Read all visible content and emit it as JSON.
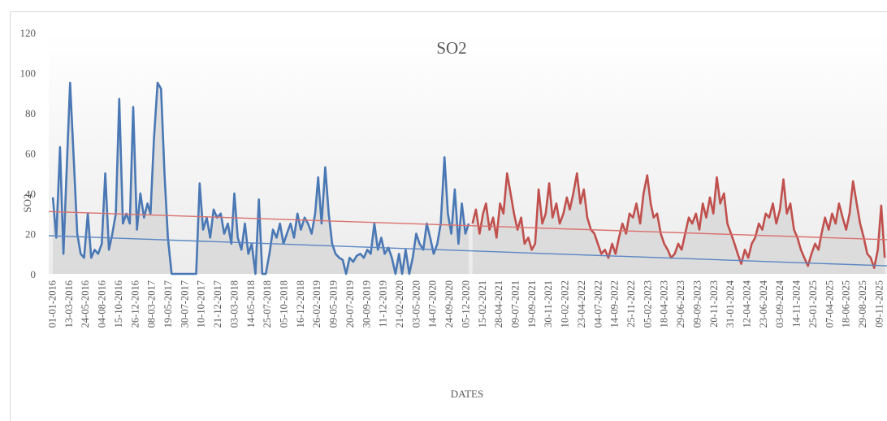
{
  "chart_data": {
    "type": "line",
    "title": "SO2",
    "y_label": "SO2",
    "x_label": "DATES",
    "ylim": [
      0,
      120
    ],
    "yticks": [
      0,
      20,
      40,
      60,
      80,
      100,
      120
    ],
    "xlim": [
      "14-12-2015",
      "11-12-2025"
    ],
    "xticks": [
      "01-01-2016",
      "13-03-2016",
      "24-05-2016",
      "04-08-2016",
      "15-10-2016",
      "26-12-2016",
      "08-03-2017",
      "19-05-2017",
      "30-07-2017",
      "10-10-2017",
      "21-12-2017",
      "03-03-2018",
      "14-05-2018",
      "25-07-2018",
      "05-10-2018",
      "16-12-2018",
      "26-02-2019",
      "09-05-2019",
      "20-07-2019",
      "30-09-2019",
      "11-12-2019",
      "21-02-2020",
      "03-05-2020",
      "14-07-2020",
      "24-09-2020",
      "05-12-2020",
      "15-02-2021",
      "28-04-2021",
      "09-07-2021",
      "19-09-2021",
      "30-11-2021",
      "10-02-2022",
      "23-04-2022",
      "04-07-2022",
      "14-09-2022",
      "25-11-2022",
      "05-02-2023",
      "18-04-2023",
      "29-06-2023",
      "09-09-2023",
      "20-11-2023",
      "31-01-2024",
      "12-04-2024",
      "23-06-2024",
      "03-09-2024",
      "14-11-2024",
      "25-01-2025",
      "07-04-2025",
      "18-06-2025",
      "29-08-2025",
      "09-11-2025"
    ],
    "area_fill": "#d6d6d6",
    "series": [
      {
        "color": "#4a78b5",
        "area": true,
        "x": [
          "01-01-2016",
          "16-01-2016",
          "01-02-2016",
          "16-02-2016",
          "01-03-2016",
          "16-03-2016",
          "01-04-2016",
          "16-04-2016",
          "01-05-2016",
          "16-05-2016",
          "01-06-2016",
          "16-06-2016",
          "01-07-2016",
          "16-07-2016",
          "01-08-2016",
          "16-08-2016",
          "01-09-2016",
          "16-09-2016",
          "01-10-2016",
          "16-10-2016",
          "01-11-2016",
          "16-11-2016",
          "01-12-2016",
          "16-12-2016",
          "01-01-2017",
          "16-01-2017",
          "01-02-2017",
          "16-02-2017",
          "01-03-2017",
          "16-03-2017",
          "01-04-2017",
          "16-04-2017",
          "01-05-2017",
          "16-05-2017",
          "01-06-2017",
          "16-06-2017",
          "01-07-2017",
          "16-07-2017",
          "01-08-2017",
          "16-08-2017",
          "01-09-2017",
          "16-09-2017",
          "01-10-2017",
          "16-10-2017",
          "01-11-2017",
          "16-11-2017",
          "01-12-2017",
          "16-12-2017",
          "01-01-2018",
          "16-01-2018",
          "01-02-2018",
          "16-02-2018",
          "01-03-2018",
          "16-03-2018",
          "01-04-2018",
          "16-04-2018",
          "01-05-2018",
          "16-05-2018",
          "01-06-2018",
          "16-06-2018",
          "01-07-2018",
          "16-07-2018",
          "01-08-2018",
          "16-08-2018",
          "01-09-2018",
          "16-09-2018",
          "01-10-2018",
          "16-10-2018",
          "01-11-2018",
          "16-11-2018",
          "01-12-2018",
          "16-12-2018",
          "01-01-2019",
          "16-01-2019",
          "01-02-2019",
          "16-02-2019",
          "01-03-2019",
          "16-03-2019",
          "01-04-2019",
          "16-04-2019",
          "01-05-2019",
          "16-05-2019",
          "01-06-2019",
          "16-06-2019",
          "01-07-2019",
          "16-07-2019",
          "01-08-2019",
          "16-08-2019",
          "01-09-2019",
          "16-09-2019",
          "01-10-2019",
          "16-10-2019",
          "01-11-2019",
          "16-11-2019",
          "01-12-2019",
          "16-12-2019",
          "01-01-2020",
          "16-01-2020",
          "01-02-2020",
          "16-02-2020",
          "01-03-2020",
          "16-03-2020",
          "01-04-2020",
          "16-04-2020",
          "01-05-2020",
          "16-05-2020",
          "01-06-2020",
          "16-06-2020",
          "01-07-2020",
          "16-07-2020",
          "01-08-2020",
          "16-08-2020",
          "01-09-2020",
          "16-09-2020",
          "01-10-2020",
          "16-10-2020",
          "01-11-2020",
          "16-11-2020",
          "01-12-2020",
          "16-12-2020"
        ],
        "values": [
          38,
          18,
          63,
          10,
          52,
          95,
          57,
          20,
          10,
          8,
          30,
          8,
          12,
          10,
          15,
          50,
          12,
          20,
          30,
          87,
          25,
          30,
          25,
          83,
          22,
          40,
          28,
          35,
          30,
          67,
          95,
          92,
          50,
          18,
          0,
          0,
          0,
          0,
          0,
          0,
          0,
          0,
          45,
          22,
          28,
          18,
          32,
          28,
          30,
          20,
          25,
          15,
          40,
          18,
          12,
          25,
          10,
          15,
          0,
          37,
          0,
          0,
          10,
          22,
          18,
          25,
          15,
          20,
          25,
          18,
          30,
          22,
          28,
          25,
          20,
          30,
          48,
          25,
          53,
          30,
          15,
          10,
          8,
          7,
          0,
          8,
          6,
          9,
          10,
          8,
          12,
          10,
          25,
          12,
          18,
          10,
          13,
          8,
          0,
          10,
          0,
          12,
          0,
          8,
          20,
          15,
          12,
          25,
          18,
          10,
          15,
          25,
          58,
          30,
          20,
          42,
          15,
          35,
          20,
          25
        ]
      },
      {
        "color": "#c0504d",
        "area": true,
        "x": [
          "01-01-2021",
          "16-01-2021",
          "01-02-2021",
          "16-02-2021",
          "01-03-2021",
          "16-03-2021",
          "01-04-2021",
          "16-04-2021",
          "01-05-2021",
          "16-05-2021",
          "01-06-2021",
          "16-06-2021",
          "01-07-2021",
          "16-07-2021",
          "01-08-2021",
          "16-08-2021",
          "01-09-2021",
          "16-09-2021",
          "01-10-2021",
          "16-10-2021",
          "01-11-2021",
          "16-11-2021",
          "01-12-2021",
          "16-12-2021",
          "01-01-2022",
          "16-01-2022",
          "01-02-2022",
          "16-02-2022",
          "01-03-2022",
          "16-03-2022",
          "01-04-2022",
          "16-04-2022",
          "01-05-2022",
          "16-05-2022",
          "01-06-2022",
          "16-06-2022",
          "01-07-2022",
          "16-07-2022",
          "01-08-2022",
          "16-08-2022",
          "01-09-2022",
          "16-09-2022",
          "01-10-2022",
          "16-10-2022",
          "01-11-2022",
          "16-11-2022",
          "01-12-2022",
          "16-12-2022",
          "01-01-2023",
          "16-01-2023",
          "01-02-2023",
          "16-02-2023",
          "01-03-2023",
          "16-03-2023",
          "01-04-2023",
          "16-04-2023",
          "01-05-2023",
          "16-05-2023",
          "01-06-2023",
          "16-06-2023",
          "01-07-2023",
          "16-07-2023",
          "01-08-2023",
          "16-08-2023",
          "01-09-2023",
          "16-09-2023",
          "01-10-2023",
          "16-10-2023",
          "01-11-2023",
          "16-11-2023",
          "01-12-2023",
          "16-12-2023",
          "01-01-2024",
          "16-01-2024",
          "01-02-2024",
          "16-02-2024",
          "01-03-2024",
          "16-03-2024",
          "01-04-2024",
          "16-04-2024",
          "01-05-2024",
          "16-05-2024",
          "01-06-2024",
          "16-06-2024",
          "01-07-2024",
          "16-07-2024",
          "01-08-2024",
          "16-08-2024",
          "01-09-2024",
          "16-09-2024",
          "01-10-2024",
          "16-10-2024",
          "01-11-2024",
          "16-11-2024",
          "01-12-2024",
          "16-12-2024",
          "01-01-2025",
          "16-01-2025",
          "01-02-2025",
          "16-02-2025",
          "01-03-2025",
          "16-03-2025",
          "01-04-2025",
          "16-04-2025",
          "01-05-2025",
          "16-05-2025",
          "01-06-2025",
          "16-06-2025",
          "01-07-2025",
          "16-07-2025",
          "01-08-2025",
          "16-08-2025",
          "01-09-2025",
          "16-09-2025",
          "01-10-2025",
          "16-10-2025",
          "01-11-2025",
          "16-11-2025",
          "01-12-2025"
        ],
        "values": [
          25,
          32,
          20,
          30,
          35,
          22,
          28,
          18,
          35,
          30,
          50,
          40,
          30,
          22,
          28,
          15,
          18,
          12,
          15,
          42,
          25,
          30,
          45,
          28,
          35,
          25,
          30,
          38,
          32,
          40,
          50,
          35,
          42,
          28,
          22,
          20,
          15,
          10,
          12,
          8,
          15,
          10,
          18,
          25,
          20,
          30,
          28,
          35,
          25,
          40,
          49,
          35,
          28,
          30,
          20,
          15,
          12,
          8,
          10,
          15,
          12,
          20,
          28,
          25,
          30,
          22,
          35,
          28,
          38,
          30,
          48,
          35,
          40,
          25,
          20,
          15,
          10,
          5,
          12,
          8,
          15,
          18,
          25,
          22,
          30,
          28,
          35,
          25,
          32,
          47,
          30,
          35,
          22,
          18,
          12,
          8,
          4,
          10,
          15,
          12,
          20,
          28,
          22,
          30,
          25,
          35,
          28,
          22,
          30,
          46,
          35,
          25,
          18,
          10,
          8,
          3,
          12,
          34,
          8
        ]
      },
      {
        "color": "#d9716e",
        "trend": true,
        "x": [
          "14-12-2015",
          "11-12-2025"
        ],
        "values": [
          31,
          17
        ]
      },
      {
        "color": "#5b86c2",
        "trend": true,
        "x": [
          "14-12-2015",
          "11-12-2025"
        ],
        "values": [
          19,
          4
        ]
      }
    ]
  }
}
